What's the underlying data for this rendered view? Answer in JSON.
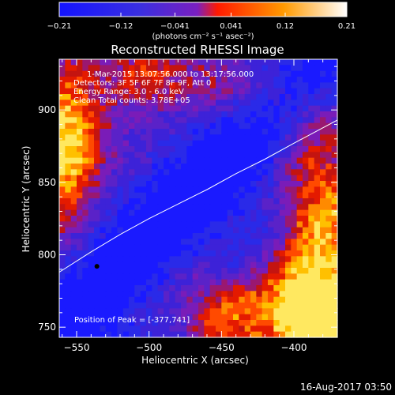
{
  "chart_data": {
    "type": "heatmap",
    "title": "Reconstructed RHESSI Image",
    "xlabel": "Heliocentric X (arcsec)",
    "ylabel": "Heliocentric Y (arcsec)",
    "xlim": [
      -562,
      -370
    ],
    "ylim": [
      743,
      935
    ],
    "x_ticks": [
      -550,
      -500,
      -450,
      -400
    ],
    "x_tick_labels": [
      "−550",
      "−500",
      "−450",
      "−400"
    ],
    "y_ticks": [
      750,
      800,
      850,
      900
    ],
    "y_tick_labels": [
      "750",
      "800",
      "850",
      "900"
    ],
    "colorbar": {
      "range": [
        -0.21,
        0.21
      ],
      "ticks": [
        -0.21,
        -0.12,
        -0.041,
        0.041,
        0.12,
        0.21
      ],
      "tick_labels": [
        "−0.21",
        "−0.12",
        "−0.041",
        "0.041",
        "0.12",
        "0.21"
      ],
      "colors": [
        "#1414ff",
        "#3a2fe0",
        "#7a1fc0",
        "#ff1a00",
        "#ff9a00",
        "#ffffff"
      ]
    },
    "units_label": "(photons cm⁻² s⁻¹ asec⁻²)",
    "info_lines": [
      "1-Mar-2015 13:07:56.000 to 13:17:56.000",
      "Detectors: 3F 5F 6F 7F 8F 9F, Att 0",
      "Energy Range: 3.0 - 6.0 keV",
      "Clean     Total counts: 3.78E+05"
    ],
    "peak_text": "Position of Peak = [-377,741]",
    "limb_curve": [
      [
        -562,
        788
      ],
      [
        -540,
        802
      ],
      [
        -520,
        814
      ],
      [
        -500,
        825
      ],
      [
        -480,
        835
      ],
      [
        -460,
        845
      ],
      [
        -440,
        856
      ],
      [
        -420,
        866
      ],
      [
        -400,
        877
      ],
      [
        -385,
        885
      ],
      [
        -370,
        893
      ]
    ],
    "marker_point": [
      -536,
      792
    ],
    "footer": "16-Aug-2017 03:50"
  }
}
